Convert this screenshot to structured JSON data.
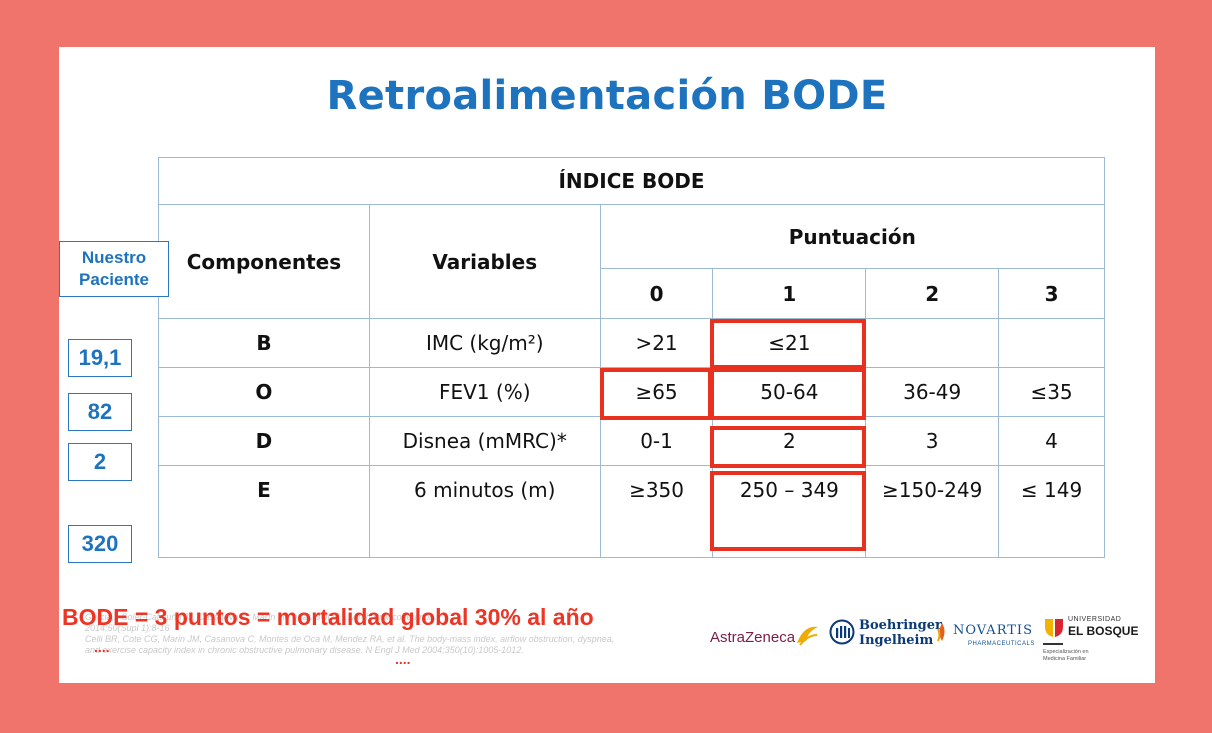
{
  "title": "Retroalimentación BODE",
  "table": {
    "header": "ÍNDICE BODE",
    "col_componentes": "Componentes",
    "col_variables": "Variables",
    "col_puntuacion": "Puntuación",
    "scores": [
      "0",
      "1",
      "2",
      "3"
    ],
    "rows": [
      {
        "comp": "B",
        "variable": "IMC (kg/m²)",
        "cells": [
          ">21",
          "≤21",
          "",
          ""
        ]
      },
      {
        "comp": "O",
        "variable": "FEV1 (%)",
        "cells": [
          "≥65",
          "50-64",
          "36-49",
          "≤35"
        ]
      },
      {
        "comp": "D",
        "variable": "Disnea (mMRC)*",
        "cells": [
          "0-1",
          "2",
          "3",
          "4"
        ]
      },
      {
        "comp": "E",
        "variable": "6 minutos (m)",
        "cells": [
          "≥350",
          "250 – 349",
          "≥150-249",
          "≤ 149"
        ]
      }
    ]
  },
  "patient": {
    "label": "Nuestro Paciente",
    "values": [
      "19,1",
      "82",
      "2",
      "320"
    ]
  },
  "conclusion": "BODE = 3 puntos = mortalidad global 30% al año",
  "references": [
    "Garcia... Soler-Cataluña JJ, Casanova C, Marín JM et al. BODE ... Arch Bronconeumol",
    "2014;50(Supl 1):8-16",
    "Celli BR, Cote CG, Marin JM, Casanova C, Montes de Oca M, Mendez RA, et al. The body-mass index, airflow obstruction, dyspnea,",
    "and exercise capacity index in chronic obstructive pulmonary disease. N Engl J Med 2004;350(10):1005-1012."
  ],
  "dots": "....",
  "logos": {
    "astrazeneca": "AstraZeneca",
    "boehringer_1": "Boehringer",
    "boehringer_2": "Ingelheim",
    "novartis": "NOVARTIS",
    "novartis_sub": "PHARMACEUTICALS",
    "bosque_1": "UNIVERSIDAD",
    "bosque_2": "EL BOSQUE",
    "bosque_3": "Especialización en",
    "bosque_4": "Medicina Familiar"
  },
  "colors": {
    "background": "#f0736c",
    "title": "#1e73be",
    "highlight": "#e8321f",
    "conclusion": "#ee3424"
  }
}
